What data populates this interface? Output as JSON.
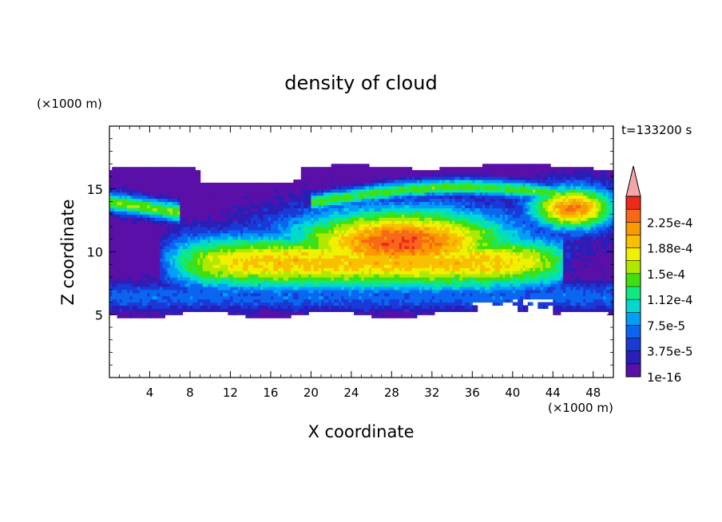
{
  "chart_data": {
    "type": "heatmap",
    "title": "density of cloud",
    "xlabel": "X coordinate",
    "ylabel": "Z coordinate",
    "x_unit": "(×1000 m)",
    "y_unit": "(×1000 m)",
    "time_label": "t=133200 s",
    "xlim": [
      0,
      50
    ],
    "ylim": [
      0,
      20
    ],
    "x_ticks": [
      4,
      8,
      12,
      16,
      20,
      24,
      28,
      32,
      36,
      40,
      44,
      48
    ],
    "y_ticks": [
      5,
      10,
      15
    ],
    "colorbar": {
      "levels": [
        1e-16,
        1.875e-05,
        3.75e-05,
        5.625e-05,
        7.5e-05,
        9.375e-05,
        0.0001125,
        0.00013125,
        0.00015,
        0.00016875,
        0.0001875,
        0.00020625,
        0.000225,
        0.00024375
      ],
      "labels": [
        "1e-16",
        "3.75e-5",
        "7.5e-5",
        "1.12e-4",
        "1.5e-4",
        "1.88e-4",
        "2.25e-4"
      ],
      "colors": [
        "#5a10a8",
        "#2a1eb8",
        "#1a3ad8",
        "#0a66f0",
        "#00a0f8",
        "#00d8d0",
        "#10e880",
        "#40e010",
        "#b0e800",
        "#f0f000",
        "#f8c000",
        "#f89a00",
        "#f86818",
        "#f02818"
      ],
      "overflow_color": "#f4a6a6"
    },
    "field_fn": "cloud_core_x8_48_z5_15_peak_x30_z11"
  }
}
